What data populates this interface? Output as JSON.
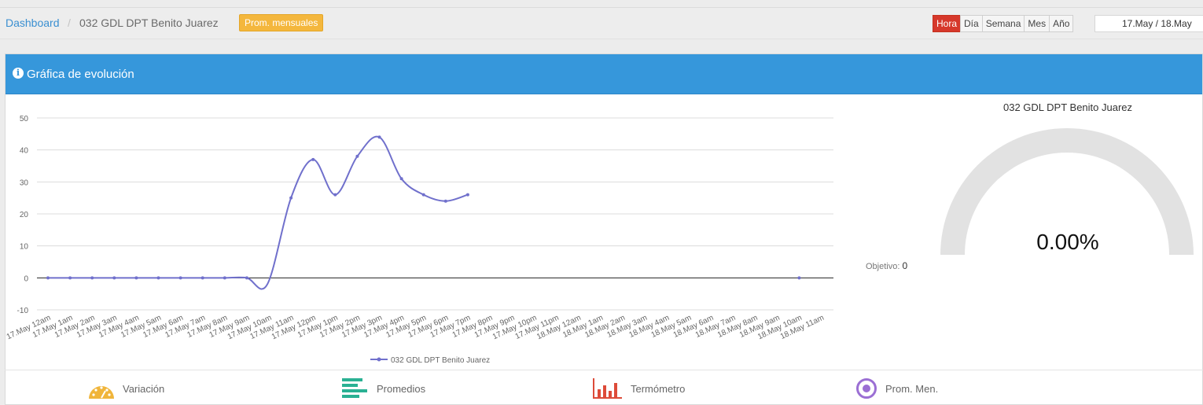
{
  "breadcrumb": {
    "home": "Dashboard",
    "separator": "/",
    "current": "032 GDL DPT Benito Juarez"
  },
  "badge": "Prom. mensuales",
  "periods": [
    {
      "label": "Hora",
      "active": true
    },
    {
      "label": "Día",
      "active": false
    },
    {
      "label": "Semana",
      "active": false
    },
    {
      "label": "Mes",
      "active": false
    },
    {
      "label": "Año",
      "active": false
    }
  ],
  "daterange": "17.May / 18.May",
  "panel": {
    "title": "Gráfica de evolución",
    "icon": "info-icon"
  },
  "chart_data": {
    "type": "line",
    "title": "",
    "xlabel": "",
    "ylabel": "",
    "ylim": [
      -10,
      50
    ],
    "yticks": [
      -10,
      0,
      10,
      20,
      30,
      40,
      50
    ],
    "grid": true,
    "legend_position": "bottom",
    "categories": [
      "17.May 12am",
      "17.May 1am",
      "17.May 2am",
      "17.May 3am",
      "17.May 4am",
      "17.May 5am",
      "17.May 6am",
      "17.May 7am",
      "17.May 8am",
      "17.May 9am",
      "17.May 10am",
      "17.May 11am",
      "17.May 12pm",
      "17.May 1pm",
      "17.May 2pm",
      "17.May 3pm",
      "17.May 4pm",
      "17.May 5pm",
      "17.May 6pm",
      "17.May 7pm",
      "17.May 8pm",
      "17.May 9pm",
      "17.May 10pm",
      "17.May 11pm",
      "18.May 12am",
      "18.May 1am",
      "18.May 2am",
      "18.May 3am",
      "18.May 4am",
      "18.May 5am",
      "18.May 6am",
      "18.May 7am",
      "18.May 8am",
      "18.May 9am",
      "18.May 10am",
      "18.May 11am"
    ],
    "series": [
      {
        "name": "032 GDL DPT Benito Juarez",
        "color": "#7070cc",
        "values": [
          0,
          0,
          0,
          0,
          0,
          0,
          0,
          0,
          0,
          0,
          null,
          25,
          37,
          26,
          38,
          44,
          31,
          26,
          24,
          26,
          null,
          null,
          null,
          null,
          null,
          null,
          null,
          null,
          null,
          null,
          null,
          null,
          null,
          null,
          0,
          null
        ]
      }
    ]
  },
  "gauge": {
    "title": "032 GDL DPT Benito Juarez",
    "value": "0.00%",
    "fraction": 0,
    "objective_label": "Objetivo:",
    "objective_value": "0"
  },
  "footer": [
    {
      "label": "Variación",
      "icon": "speedometer-icon",
      "color": "#f0b53b"
    },
    {
      "label": "Promedios",
      "icon": "bars-horizontal-icon",
      "color": "#2ab193"
    },
    {
      "label": "Termómetro",
      "icon": "bar-chart-icon",
      "color": "#dd4b39"
    },
    {
      "label": "Prom. Men.",
      "icon": "target-icon",
      "color": "#9b6fd4"
    }
  ]
}
